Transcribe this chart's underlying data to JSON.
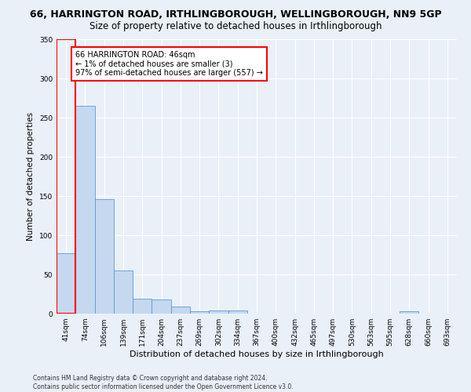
{
  "title": "66, HARRINGTON ROAD, IRTHLINGBOROUGH, WELLINGBOROUGH, NN9 5GP",
  "subtitle": "Size of property relative to detached houses in Irthlingborough",
  "xlabel": "Distribution of detached houses by size in Irthlingborough",
  "ylabel": "Number of detached properties",
  "footnote": "Contains HM Land Registry data © Crown copyright and database right 2024.\nContains public sector information licensed under the Open Government Licence v3.0.",
  "bar_labels": [
    "41sqm",
    "74sqm",
    "106sqm",
    "139sqm",
    "171sqm",
    "204sqm",
    "237sqm",
    "269sqm",
    "302sqm",
    "334sqm",
    "367sqm",
    "400sqm",
    "432sqm",
    "465sqm",
    "497sqm",
    "530sqm",
    "563sqm",
    "595sqm",
    "628sqm",
    "660sqm",
    "693sqm"
  ],
  "bar_values": [
    77,
    265,
    146,
    55,
    19,
    18,
    9,
    3,
    4,
    4,
    0,
    0,
    0,
    0,
    0,
    0,
    0,
    0,
    3,
    0,
    0
  ],
  "bar_color": "#c5d8f0",
  "bar_edge_color": "#5b9bd5",
  "highlight_bar_index": 0,
  "highlight_color": "#ff0000",
  "annotation_text": "66 HARRINGTON ROAD: 46sqm\n← 1% of detached houses are smaller (3)\n97% of semi-detached houses are larger (557) →",
  "annotation_box_color": "#ffffff",
  "annotation_box_edge_color": "#ff0000",
  "ylim": [
    0,
    350
  ],
  "yticks": [
    0,
    50,
    100,
    150,
    200,
    250,
    300,
    350
  ],
  "background_color": "#eaf0f8",
  "plot_background_color": "#eaf0f8",
  "grid_color": "#ffffff",
  "title_fontsize": 9,
  "subtitle_fontsize": 8.5,
  "tick_fontsize": 6.5,
  "label_fontsize": 8,
  "ylabel_fontsize": 7.5,
  "footnote_fontsize": 5.5
}
